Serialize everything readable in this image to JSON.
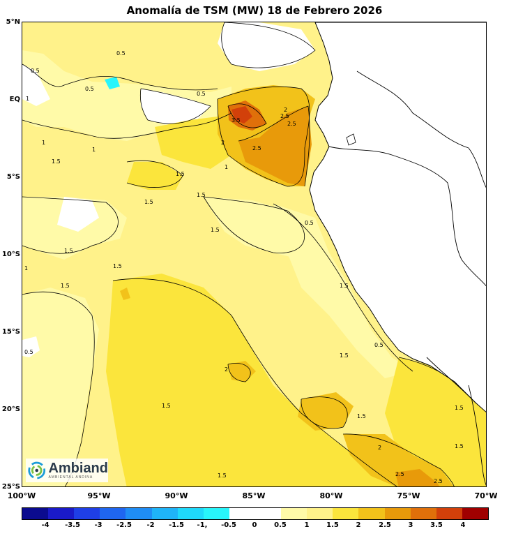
{
  "title": "Anomalía de TSM (MW) 18 de Febrero 2026",
  "axes": {
    "lat_labels": [
      "5°N",
      "EQ",
      "5°S",
      "10°S",
      "15°S",
      "20°S",
      "25°S"
    ],
    "lon_labels": [
      "100°W",
      "95°W",
      "90°W",
      "85°W",
      "80°W",
      "75°W",
      "70°W"
    ]
  },
  "colorbar": {
    "labels": [
      "-4",
      "-3.5",
      "-3",
      "-2.5",
      "-2",
      "-1.5",
      "-1,",
      "-0.5",
      "0",
      "0.5",
      "1",
      "1.5",
      "2",
      "2.5",
      "3",
      "3.5",
      "4"
    ],
    "colors": [
      "#0b0b8f",
      "#1a1ac8",
      "#1f3fe6",
      "#1f66f0",
      "#1f8df5",
      "#1fb4f8",
      "#1fd9fb",
      "#28f5fb",
      "#ffffff",
      "#ffffff",
      "#fffaa8",
      "#fff28a",
      "#fbe53c",
      "#f2c21a",
      "#e89a0a",
      "#e0700a",
      "#d2400a",
      "#a00000"
    ]
  },
  "contour_labels": [
    "0.5",
    "0.5",
    "0.5",
    "0.5",
    "1",
    "1",
    "1",
    "1.5",
    "1.5",
    "1.5",
    "1.5",
    "1.5",
    "1.5",
    "1.5",
    "2",
    "2",
    "2.5",
    "2.5",
    "2.5",
    "3.5",
    "0.5",
    "1",
    "1.5",
    "1.5",
    "1.5",
    "2",
    "2",
    "2.5",
    "2.5",
    "1.5",
    "1.5",
    "1.5",
    "1",
    "0.5",
    "0.5",
    "1.5",
    "1.5"
  ],
  "logo": {
    "name": "Ambiand",
    "subtitle": "AMBIENTAL ANDINA"
  }
}
